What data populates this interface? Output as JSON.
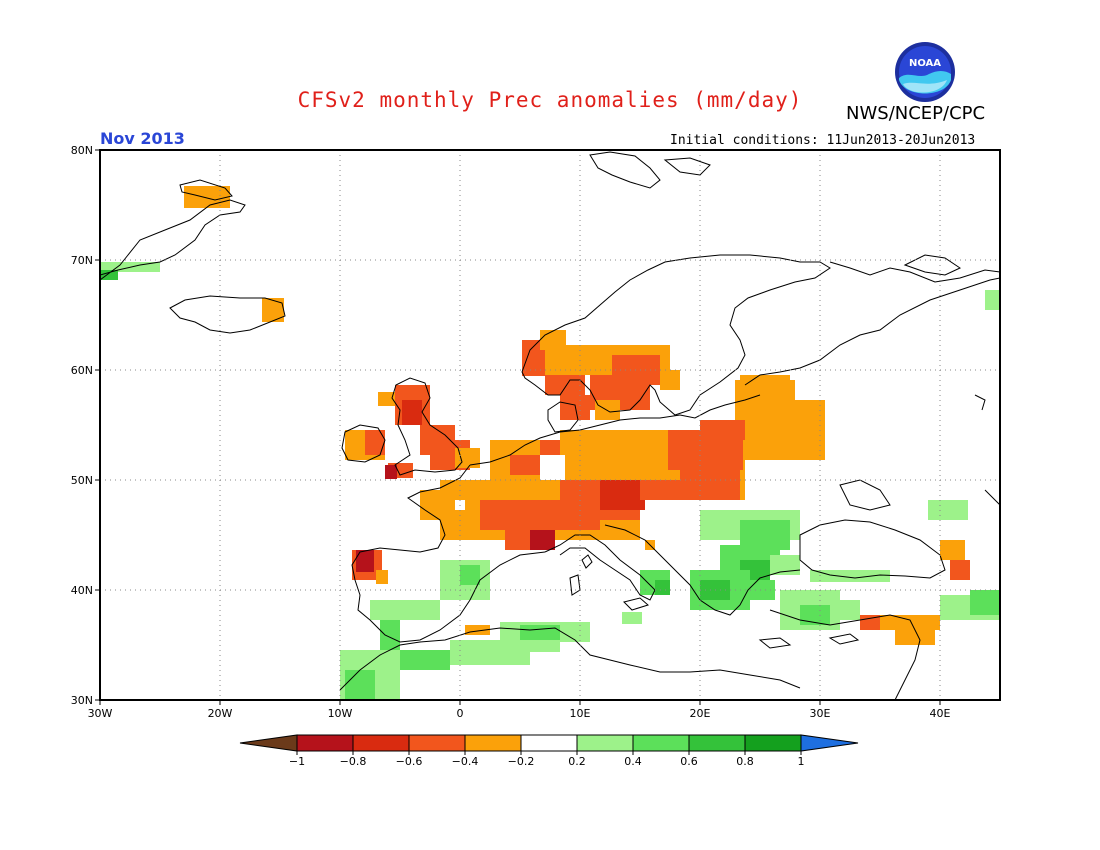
{
  "title": "CFSv2 monthly Prec anomalies (mm/day)",
  "agency": "NWS/NCEP/CPC",
  "logo_text": "NOAA",
  "period": "Nov 2013",
  "initial_conditions": "Initial conditions: 11Jun2013-20Jun2013",
  "lat_labels": [
    "80N",
    "70N",
    "60N",
    "50N",
    "40N",
    "30N"
  ],
  "lon_labels": [
    "30W",
    "20W",
    "10W",
    "0",
    "10E",
    "20E",
    "30E",
    "40E"
  ],
  "legend": {
    "labels": [
      "-1",
      "-0.8",
      "-0.6",
      "-0.4",
      "-0.2",
      "0.2",
      "0.4",
      "0.6",
      "0.8",
      "1"
    ],
    "colors": [
      "#6b3a1a",
      "#b5121b",
      "#d92b10",
      "#f2561d",
      "#fba10a",
      "#ffffff",
      "#9df28a",
      "#5ce05a",
      "#34c23a",
      "#14a01e",
      "#1e6fe0"
    ]
  },
  "colors": {
    "title": "#e0201a",
    "period": "#2a46d6"
  }
}
